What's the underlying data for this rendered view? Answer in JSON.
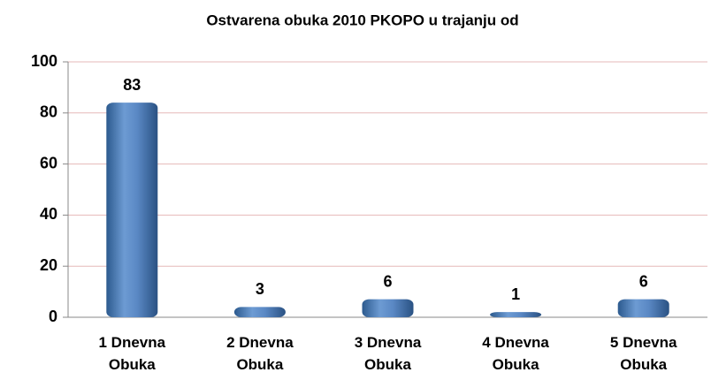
{
  "chart_data": {
    "type": "bar",
    "title": "Ostvarena obuka 2010  PKOPO u trajanju od",
    "categories": [
      "1 Dnevna Obuka",
      "2 Dnevna Obuka",
      "3 Dnevna Obuka",
      "4 Dnevna Obuka",
      "5 Dnevna Obuka"
    ],
    "values": [
      83,
      3,
      6,
      1,
      6
    ],
    "color": "#4f81bd",
    "ylim": [
      0,
      100
    ],
    "yticks": [
      0,
      20,
      40,
      60,
      80,
      100
    ],
    "grid": true
  }
}
